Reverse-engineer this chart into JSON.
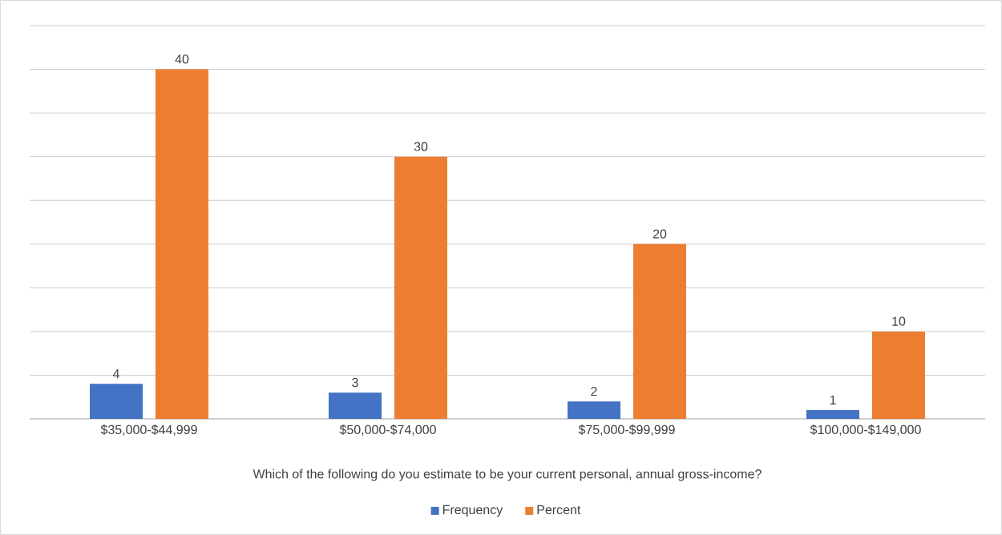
{
  "chart_data": {
    "type": "bar",
    "xlabel": "Which of the following do you estimate to be your current personal, annual gross-income?",
    "categories": [
      "$35,000-$44,999",
      "$50,000-$74,000",
      "$75,000-$99,999",
      "$100,000-$149,000"
    ],
    "series": [
      {
        "name": "Frequency",
        "color": "#4472c4",
        "values": [
          4,
          3,
          2,
          1
        ]
      },
      {
        "name": "Percent",
        "color": "#ed7d31",
        "values": [
          40,
          30,
          20,
          10
        ]
      }
    ],
    "grid": "y",
    "legend": "bottom",
    "data_labels": true,
    "tick_labels": "x"
  }
}
